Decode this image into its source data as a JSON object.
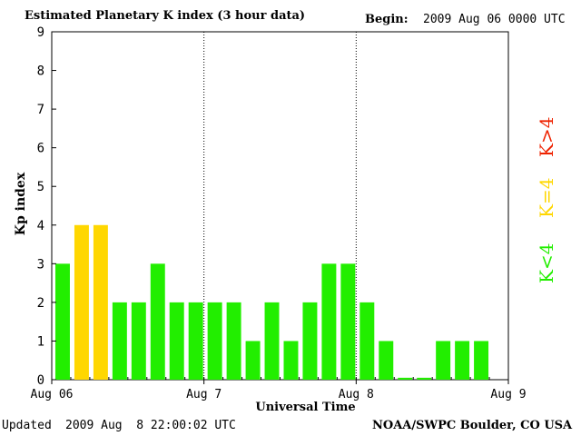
{
  "header": {
    "title": "Estimated Planetary K index (3 hour data)",
    "begin_label": "Begin:",
    "begin_value": "2009 Aug 06 0000 UTC"
  },
  "footer": {
    "updated_label": "Updated",
    "updated_value": "2009 Aug  8 22:00:02 UTC",
    "source": "NOAA/SWPC Boulder, CO USA"
  },
  "legend": {
    "above": "K>4",
    "equal": "K=4",
    "below": "K<4"
  },
  "colors": {
    "below": "#22ee00",
    "equal": "#ffd700",
    "above": "#ee2200"
  },
  "chart_data": {
    "type": "bar",
    "title": "Estimated Planetary K index (3 hour data)",
    "xlabel": "Universal Time",
    "ylabel": "Kp index",
    "ylim": [
      0,
      9
    ],
    "yticks": [
      "0",
      "1",
      "2",
      "3",
      "4",
      "5",
      "6",
      "7",
      "8",
      "9"
    ],
    "xticks": [
      "Aug 06",
      "Aug 7",
      "Aug 8",
      "Aug 9"
    ],
    "interval_hours": 3,
    "grid": "dotted vertical lines at day boundaries",
    "values": [
      3,
      4,
      4,
      2,
      2,
      3,
      2,
      2,
      2,
      2,
      1,
      2,
      1,
      2,
      3,
      3,
      2,
      1,
      0.05,
      0.05,
      1,
      1,
      1
    ]
  }
}
